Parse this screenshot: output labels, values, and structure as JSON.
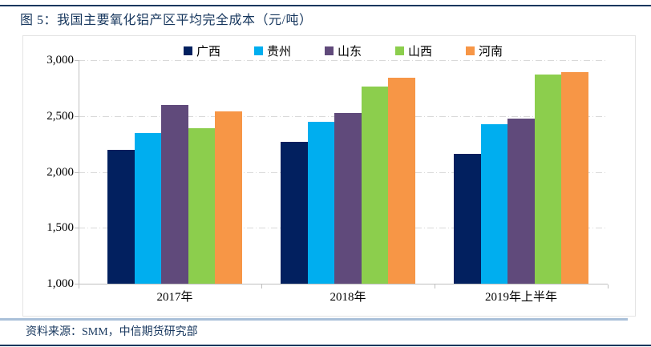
{
  "page": {
    "title": "图 5：我国主要氧化铝产区平均完全成本（元/吨）",
    "source": "资料来源：SMM，中信期货研究部",
    "colors": {
      "accent_navy": "#17375E",
      "divider_blue": "#A9C0D9",
      "gridline": "#D9D9D9",
      "axis": "#BFBFBF"
    }
  },
  "chart_data": {
    "type": "bar",
    "title": "图 5：我国主要氧化铝产区平均完全成本（元/吨）",
    "xlabel": "",
    "ylabel": "元/吨",
    "categories": [
      "2017年",
      "2018年",
      "2019年上半年"
    ],
    "series": [
      {
        "name": "广西",
        "color": "#02205F",
        "values": [
          2200,
          2270,
          2160
        ]
      },
      {
        "name": "贵州",
        "color": "#00AEEF",
        "values": [
          2350,
          2450,
          2430
        ]
      },
      {
        "name": "山东",
        "color": "#604A7B",
        "values": [
          2600,
          2530,
          2480
        ]
      },
      {
        "name": "山西",
        "color": "#8CCE4D",
        "values": [
          2390,
          2760,
          2870
        ]
      },
      {
        "name": "河南",
        "color": "#F79646",
        "values": [
          2540,
          2840,
          2890
        ]
      }
    ],
    "ylim": [
      1000,
      3000
    ],
    "yticks": [
      1000,
      1500,
      2000,
      2500,
      3000
    ],
    "ytick_labels": [
      "1,000",
      "1,500",
      "2,000",
      "2,500",
      "3,000"
    ],
    "legend_position": "top",
    "grid": "horizontal, dash-dot, light gray",
    "source": "资料来源：SMM，中信期货研究部"
  }
}
